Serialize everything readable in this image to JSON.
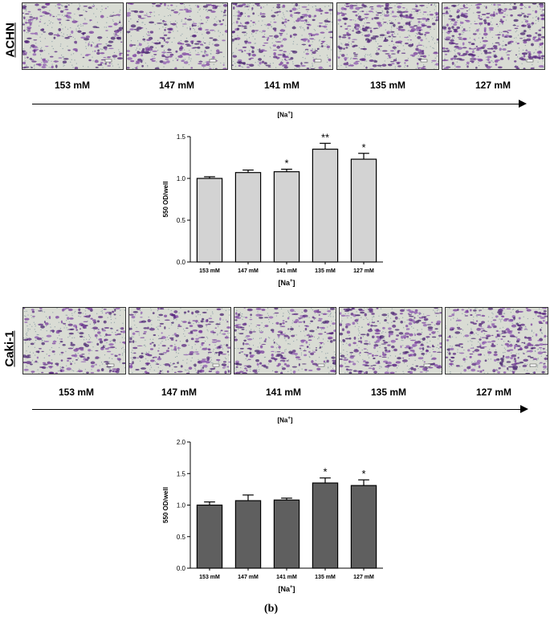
{
  "panel_label": "(b)",
  "sections": [
    {
      "cell_line": "ACHN",
      "concentrations": [
        "153 mM",
        "147 mM",
        "141 mM",
        "135 mM",
        "127 mM"
      ],
      "gradient_label": "[Na+]",
      "stain_density": [
        0.45,
        0.55,
        0.6,
        0.85,
        0.95
      ]
    },
    {
      "cell_line": "Caki-1",
      "concentrations": [
        "153 mM",
        "147 mM",
        "141 mM",
        "135 mM",
        "127 mM"
      ],
      "gradient_label": "[Na+]",
      "stain_density": [
        0.55,
        0.6,
        0.65,
        0.85,
        0.85
      ]
    }
  ],
  "chart_data": [
    {
      "type": "bar",
      "categories": [
        "153 mM",
        "147 mM",
        "141 mM",
        "135 mM",
        "127 mM"
      ],
      "values": [
        1.0,
        1.07,
        1.08,
        1.35,
        1.23
      ],
      "errors": [
        0.02,
        0.03,
        0.03,
        0.07,
        0.07
      ],
      "significance": [
        "",
        "",
        "*",
        "**",
        "*"
      ],
      "xlabel": "[Na+]",
      "ylabel": "550 OD/well",
      "ylim": [
        0.0,
        1.5
      ],
      "yticks": [
        "0.0",
        "0.5",
        "1.0",
        "1.5"
      ],
      "bar_color": "#d3d3d3"
    },
    {
      "type": "bar",
      "categories": [
        "153 mM",
        "147 mM",
        "141 mM",
        "135 mM",
        "127 mM"
      ],
      "values": [
        1.0,
        1.07,
        1.08,
        1.35,
        1.31
      ],
      "errors": [
        0.05,
        0.09,
        0.03,
        0.08,
        0.09
      ],
      "significance": [
        "",
        "",
        "",
        "*",
        "*"
      ],
      "xlabel": "[Na+]",
      "ylabel": "550 OD/well",
      "ylim": [
        0.0,
        2.0
      ],
      "yticks": [
        "0.0",
        "0.5",
        "1.0",
        "1.5",
        "2.0"
      ],
      "bar_color": "#5f5f5f"
    }
  ]
}
